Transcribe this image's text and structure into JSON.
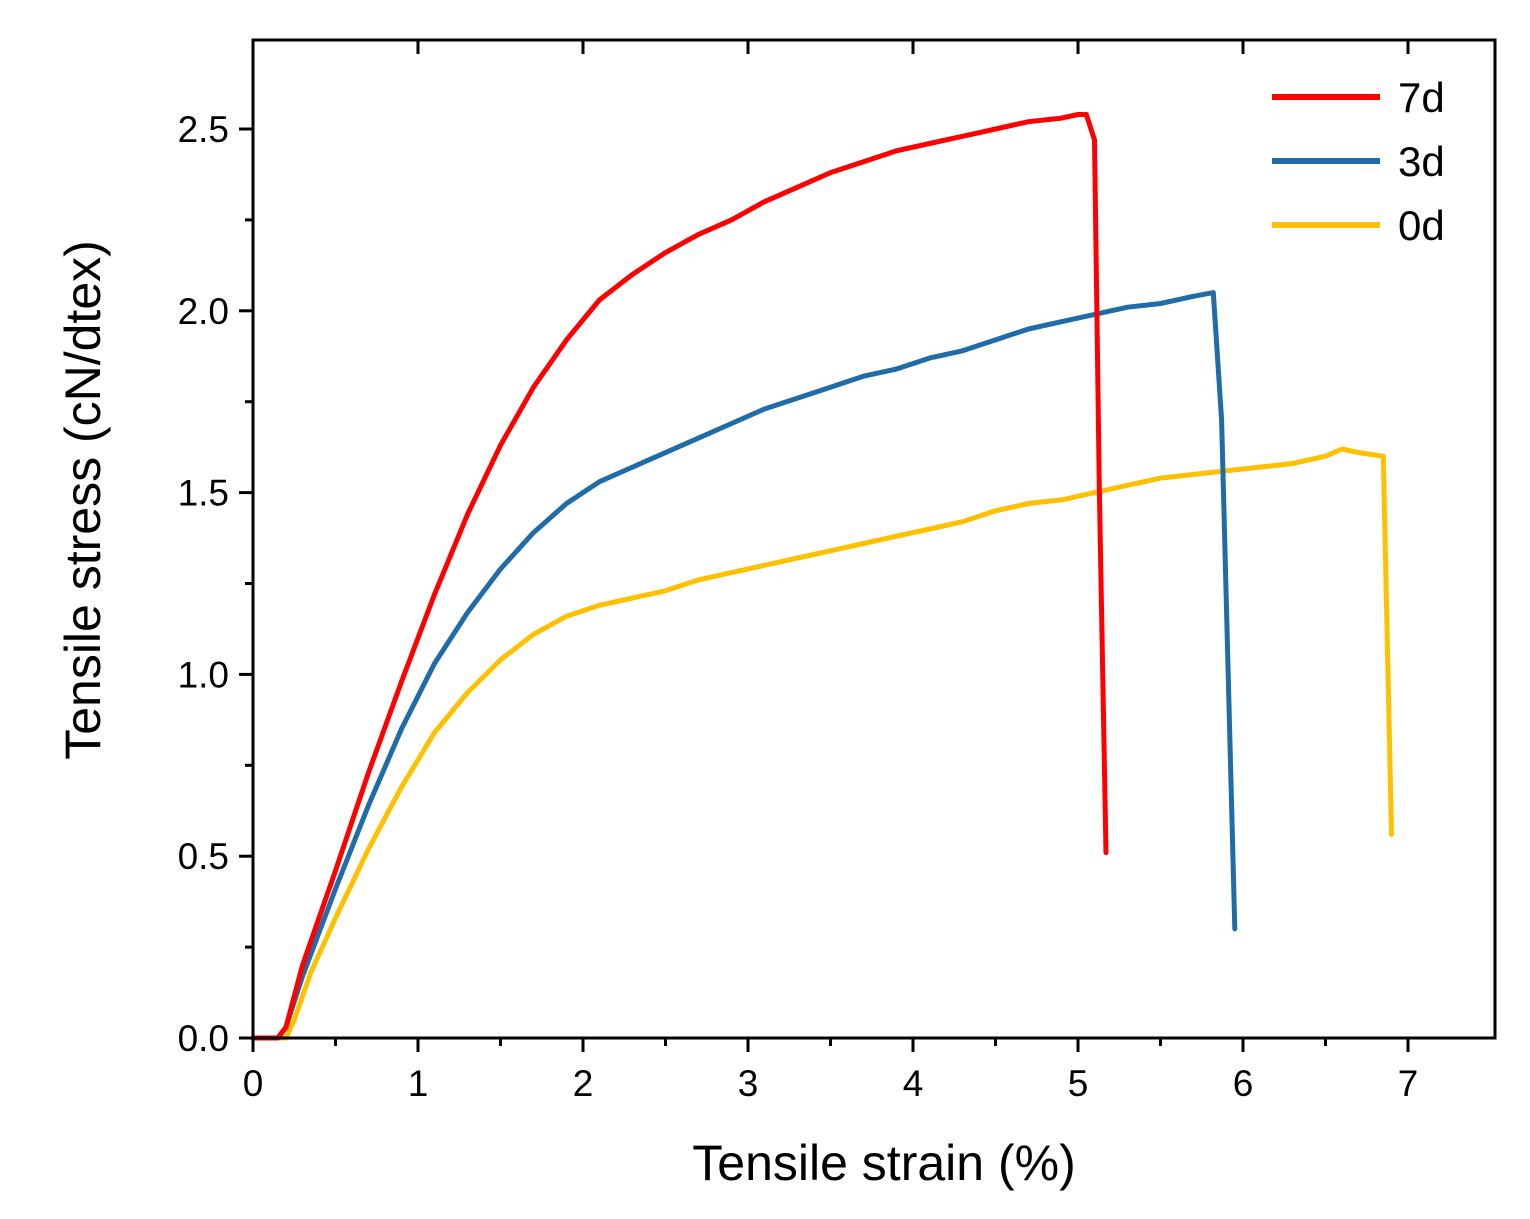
{
  "chart_data": {
    "type": "line",
    "title": "",
    "xlabel": "Tensile strain (%)",
    "ylabel": "Tensile stress  (cN/dtex)",
    "xlim": [
      0,
      7.5
    ],
    "ylim": [
      0,
      2.75
    ],
    "xticks": [
      0,
      1,
      2,
      3,
      4,
      5,
      6,
      7
    ],
    "xtick_labels": [
      "0",
      "1",
      "2",
      "3",
      "4",
      "5",
      "6",
      "7"
    ],
    "yticks": [
      0.0,
      0.5,
      1.0,
      1.5,
      2.0,
      2.5
    ],
    "ytick_labels": [
      "0.0",
      "0.5",
      "1.0",
      "1.5",
      "2.0",
      "2.5"
    ],
    "grid": false,
    "legend_position": "top-right",
    "series": [
      {
        "name": "7d",
        "color": "#ff0000",
        "x": [
          0,
          0.15,
          0.2,
          0.3,
          0.5,
          0.7,
          0.9,
          1.1,
          1.3,
          1.5,
          1.7,
          1.9,
          2.1,
          2.3,
          2.5,
          2.7,
          2.9,
          3.1,
          3.3,
          3.5,
          3.7,
          3.9,
          4.1,
          4.3,
          4.5,
          4.7,
          4.9,
          5.0,
          5.05,
          5.1,
          5.13,
          5.17
        ],
        "y": [
          0,
          0,
          0.03,
          0.2,
          0.46,
          0.73,
          0.98,
          1.22,
          1.44,
          1.63,
          1.79,
          1.92,
          2.03,
          2.1,
          2.16,
          2.21,
          2.25,
          2.3,
          2.34,
          2.38,
          2.41,
          2.44,
          2.46,
          2.48,
          2.5,
          2.52,
          2.53,
          2.54,
          2.54,
          2.47,
          1.5,
          0.51
        ]
      },
      {
        "name": "3d",
        "color": "#1f6ca8",
        "x": [
          0,
          0.15,
          0.2,
          0.3,
          0.5,
          0.7,
          0.9,
          1.1,
          1.3,
          1.5,
          1.7,
          1.9,
          2.1,
          2.3,
          2.5,
          2.7,
          2.9,
          3.1,
          3.3,
          3.5,
          3.7,
          3.9,
          4.1,
          4.3,
          4.5,
          4.7,
          4.9,
          5.1,
          5.3,
          5.5,
          5.7,
          5.82,
          5.87,
          5.95
        ],
        "y": [
          0,
          0,
          0.03,
          0.17,
          0.41,
          0.64,
          0.85,
          1.03,
          1.17,
          1.29,
          1.39,
          1.47,
          1.53,
          1.57,
          1.61,
          1.65,
          1.69,
          1.73,
          1.76,
          1.79,
          1.82,
          1.84,
          1.87,
          1.89,
          1.92,
          1.95,
          1.97,
          1.99,
          2.01,
          2.02,
          2.04,
          2.05,
          1.7,
          0.3
        ]
      },
      {
        "name": "0d",
        "color": "#ffc000",
        "x": [
          0,
          0.2,
          0.25,
          0.35,
          0.5,
          0.7,
          0.9,
          1.1,
          1.3,
          1.5,
          1.7,
          1.9,
          2.1,
          2.3,
          2.5,
          2.7,
          2.9,
          3.1,
          3.3,
          3.5,
          3.7,
          3.9,
          4.1,
          4.3,
          4.5,
          4.7,
          4.9,
          5.1,
          5.3,
          5.5,
          5.7,
          5.9,
          6.1,
          6.3,
          6.5,
          6.6,
          6.7,
          6.85,
          6.9
        ],
        "y": [
          0,
          0,
          0.05,
          0.18,
          0.33,
          0.52,
          0.69,
          0.84,
          0.95,
          1.04,
          1.11,
          1.16,
          1.19,
          1.21,
          1.23,
          1.26,
          1.28,
          1.3,
          1.32,
          1.34,
          1.36,
          1.38,
          1.4,
          1.42,
          1.45,
          1.47,
          1.48,
          1.5,
          1.52,
          1.54,
          1.55,
          1.56,
          1.57,
          1.58,
          1.6,
          1.62,
          1.61,
          1.6,
          0.56
        ]
      }
    ]
  }
}
